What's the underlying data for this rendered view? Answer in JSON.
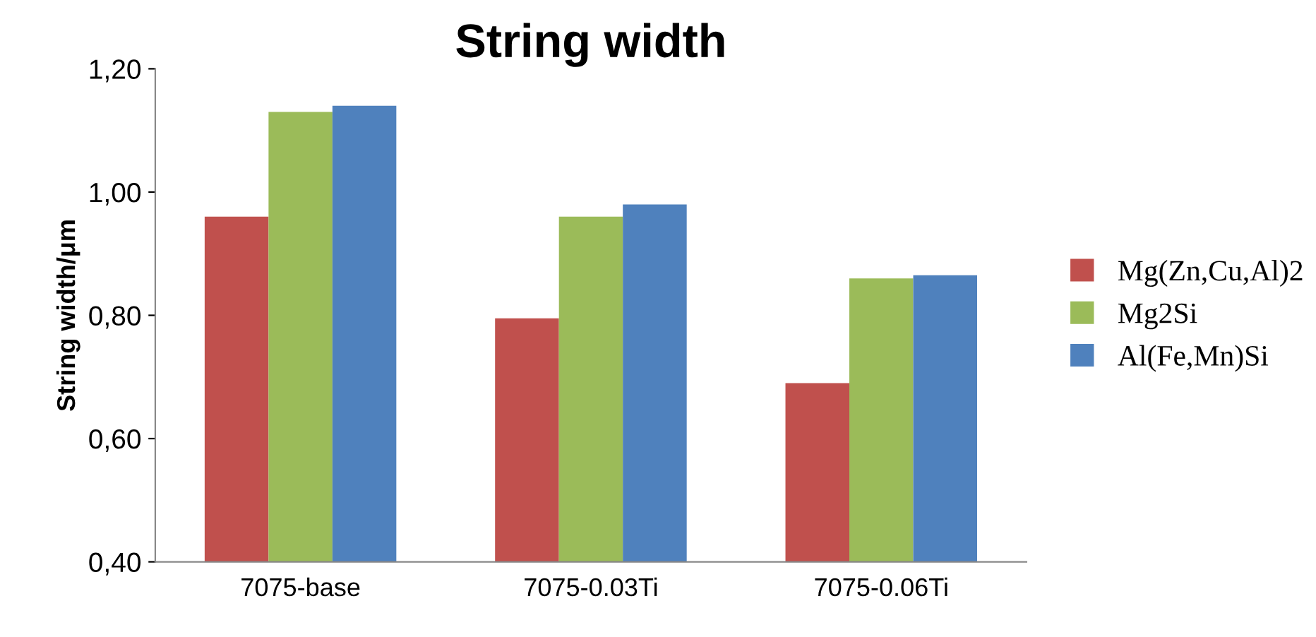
{
  "chart_data": {
    "type": "bar",
    "title": "String width",
    "ylabel": "String width/μm",
    "categories": [
      "7075-base",
      "7075-0.03Ti",
      "7075-0.06Ti"
    ],
    "series": [
      {
        "name": "Mg(Zn,Cu,Al)2",
        "color": "#c0504d",
        "values": [
          0.96,
          0.795,
          0.69
        ]
      },
      {
        "name": "Mg2Si",
        "color": "#9bbb59",
        "values": [
          1.13,
          0.96,
          0.86
        ]
      },
      {
        "name": "Al(Fe,Mn)Si",
        "color": "#4f81bd",
        "values": [
          1.14,
          0.98,
          0.865
        ]
      }
    ],
    "ylim": [
      0.4,
      1.2
    ],
    "yticks": [
      {
        "value": 0.4,
        "label": "0,40"
      },
      {
        "value": 0.6,
        "label": "0,60"
      },
      {
        "value": 0.8,
        "label": "0,80"
      },
      {
        "value": 1.0,
        "label": "1,00"
      },
      {
        "value": 1.2,
        "label": "1,20"
      }
    ],
    "grid": false,
    "legend": "right"
  }
}
